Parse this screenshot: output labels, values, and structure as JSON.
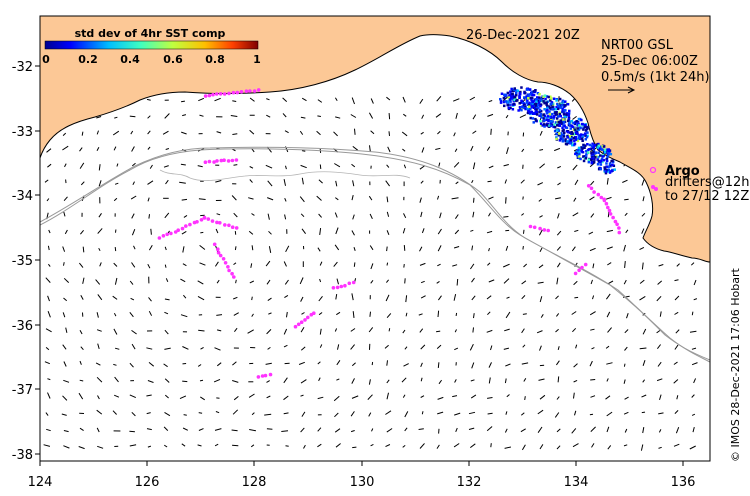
{
  "title_date": "26-Dec-2021 20Z",
  "product": {
    "line1": "NRT00 GSL",
    "line2": "25-Dec 06:00Z",
    "line3": "0.5m/s (1kt 24h)"
  },
  "colorbar": {
    "title": "std dev of 4hr SST comp",
    "ticks": [
      "0",
      "0.2",
      "0.4",
      "0.6",
      "0.8",
      "1"
    ]
  },
  "legend": {
    "argo_label": "Argo",
    "drifters_line1": "drifters@12h",
    "drifters_line2": "to 27/12 12Z"
  },
  "credit": "© IMOS 28-Dec-2021 17:06 Hobart",
  "colors": {
    "land": "#fcc896",
    "drifter": "#ff33ff",
    "depth_contour": "#999999",
    "vector": "#000000"
  },
  "axes": {
    "lon_ticks": [
      "124",
      "126",
      "128",
      "130",
      "132",
      "134",
      "136"
    ],
    "lat_ticks": [
      "-32",
      "-33",
      "-34",
      "-35",
      "-36",
      "-37",
      "-38"
    ],
    "lon_range": [
      124,
      136.3
    ],
    "lat_range": [
      -38.1,
      -31.35
    ]
  }
}
